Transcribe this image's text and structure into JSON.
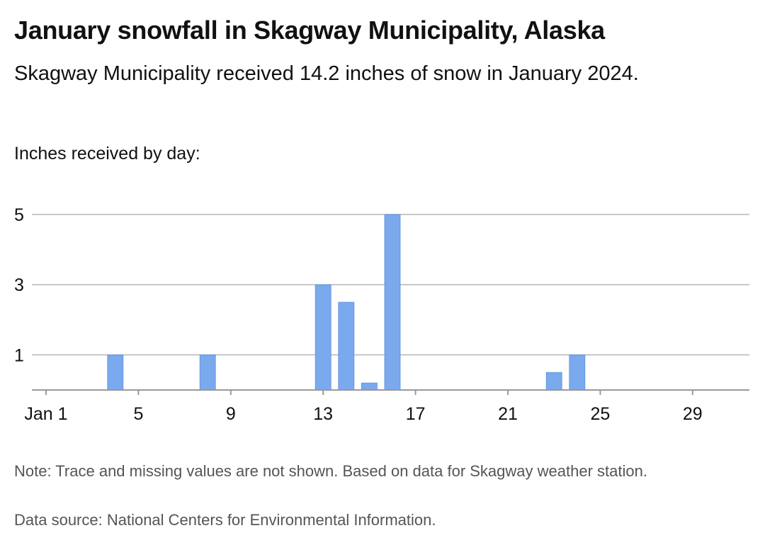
{
  "header": {
    "title": "January snowfall in Skagway Municipality, Alaska",
    "subtitle": "Skagway Municipality received 14.2 inches of snow in January 2024.",
    "axis_caption": "Inches received by day:"
  },
  "footer": {
    "note": "Note: Trace and missing values are not shown. Based on data for Skagway weather station.",
    "source": "Data source: National Centers for Environmental Information."
  },
  "chart_data": {
    "type": "bar",
    "title": "January snowfall in Skagway Municipality, Alaska",
    "ylabel": "Inches received by day:",
    "x": [
      4,
      8,
      13,
      14,
      15,
      16,
      23,
      24
    ],
    "values": [
      1.0,
      1.0,
      3.0,
      2.5,
      0.2,
      5.0,
      0.5,
      1.0
    ],
    "xlim": [
      1,
      31
    ],
    "ylim": [
      0,
      5
    ],
    "x_ticks": [
      1,
      5,
      9,
      13,
      17,
      21,
      25,
      29
    ],
    "x_tick_labels": [
      "Jan 1",
      "5",
      "9",
      "13",
      "17",
      "21",
      "25",
      "29"
    ],
    "y_ticks": [
      1,
      3,
      5
    ],
    "y_tick_labels": [
      "1",
      "3",
      "5"
    ],
    "grid": true,
    "colors": {
      "bar": "#7aa9ee",
      "grid": "#b5b5b5",
      "axis": "#999999"
    }
  }
}
